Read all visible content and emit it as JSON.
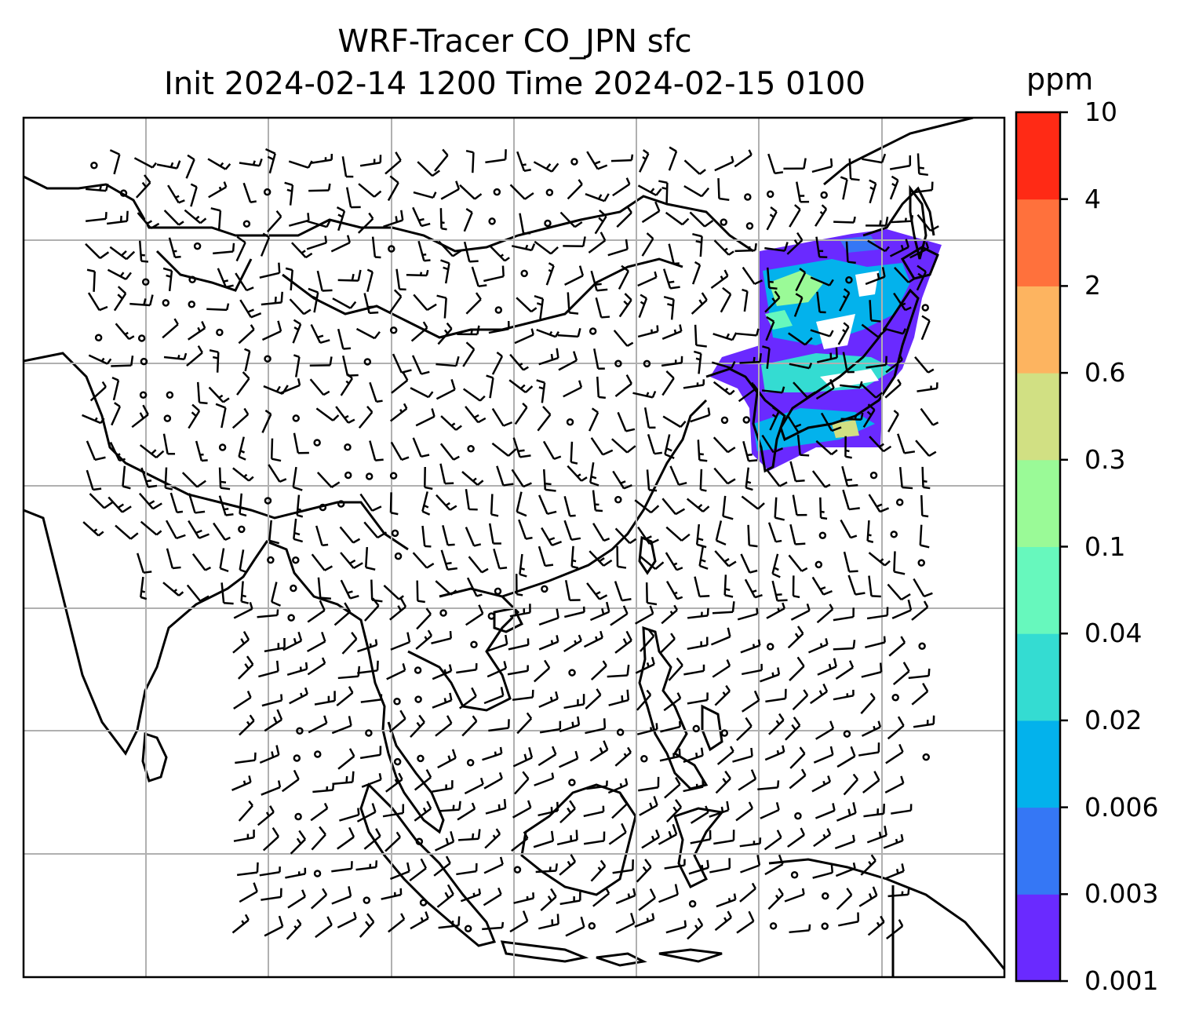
{
  "title_line1": "WRF-Tracer CO_JPN sfc",
  "title_line2": "Init 2024-02-14 1200 Time 2024-02-15 0100",
  "colorbar": {
    "unit": "ppm",
    "levels": [
      "0.001",
      "0.003",
      "0.006",
      "0.02",
      "0.04",
      "0.1",
      "0.3",
      "0.6",
      "2",
      "4",
      "10"
    ],
    "colors": [
      "#6a2aff",
      "#3577f5",
      "#03b2ec",
      "#34dcd2",
      "#67f8bd",
      "#9afa97",
      "#d1e083",
      "#fdb460",
      "#ff713c",
      "#ff2a15"
    ]
  },
  "map": {
    "grid": true,
    "grid_color": "#b0b0b0",
    "features": [
      "coastlines",
      "wind-barbs",
      "tracer-plume"
    ]
  }
}
